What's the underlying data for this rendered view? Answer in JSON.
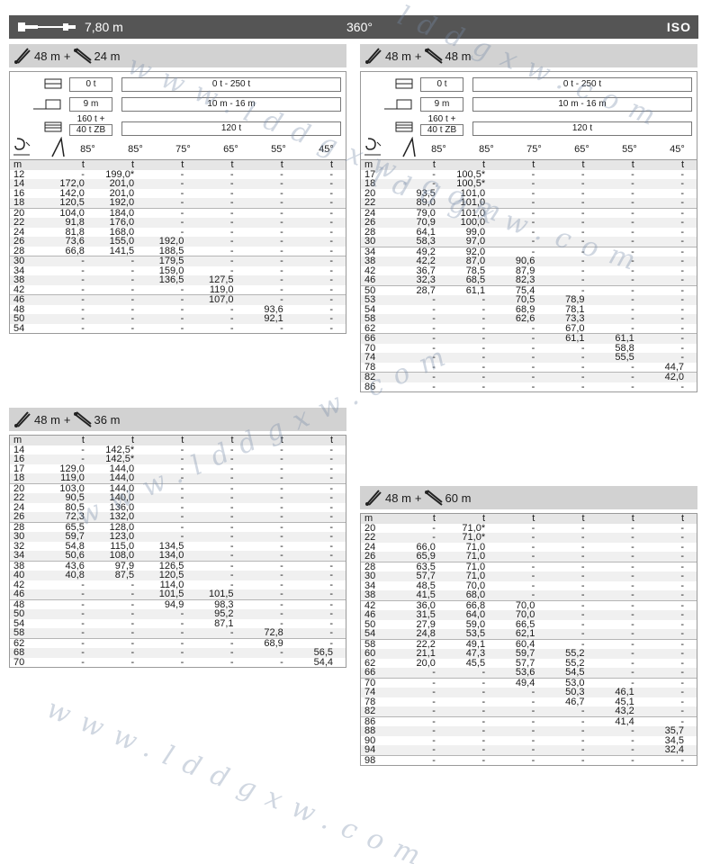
{
  "header": {
    "boom_length": "7,80 m",
    "rotation": "360°",
    "standard": "ISO"
  },
  "config_labels": {
    "ballast_1": "0 t",
    "ballast_range": "0 t - 250 t",
    "radius_1": "9 m",
    "radius_range": "10 m - 16 m",
    "superlift_line1": "160 t +",
    "superlift_line2": "40 t ZB",
    "superlift_range": "120 t"
  },
  "unit_label": "t",
  "radius_unit": "m",
  "tables": [
    {
      "main_boom": "48 m",
      "plus": "+",
      "jib": "24 m",
      "angles": [
        "85°",
        "85°",
        "75°",
        "65°",
        "55°",
        "45°"
      ],
      "rows": [
        [
          "12",
          "-",
          "199,0*",
          "-",
          "-",
          "-",
          "-"
        ],
        [
          "14",
          "172,0",
          "201,0",
          "-",
          "-",
          "-",
          "-"
        ],
        [
          "16",
          "142,0",
          "201,0",
          "-",
          "-",
          "-",
          "-"
        ],
        [
          "18",
          "120,5",
          "192,0",
          "-",
          "-",
          "-",
          "-"
        ],
        [
          "20",
          "104,0",
          "184,0",
          "-",
          "-",
          "-",
          "-"
        ],
        [
          "22",
          "91,8",
          "176,0",
          "-",
          "-",
          "-",
          "-"
        ],
        [
          "24",
          "81,8",
          "168,0",
          "-",
          "-",
          "-",
          "-"
        ],
        [
          "26",
          "73,6",
          "155,0",
          "192,0",
          "-",
          "-",
          "-"
        ],
        [
          "28",
          "66,8",
          "141,5",
          "188,5",
          "-",
          "-",
          "-"
        ],
        [
          "30",
          "-",
          "-",
          "179,5",
          "-",
          "-",
          "-"
        ],
        [
          "34",
          "-",
          "-",
          "159,0",
          "-",
          "-",
          "-"
        ],
        [
          "38",
          "-",
          "-",
          "136,5",
          "127,5",
          "-",
          "-"
        ],
        [
          "42",
          "-",
          "-",
          "-",
          "119,0",
          "-",
          "-"
        ],
        [
          "46",
          "-",
          "-",
          "-",
          "107,0",
          "-",
          "-"
        ],
        [
          "48",
          "-",
          "-",
          "-",
          "-",
          "93,6",
          "-"
        ],
        [
          "50",
          "-",
          "-",
          "-",
          "-",
          "92,1",
          "-"
        ],
        [
          "54",
          "-",
          "-",
          "-",
          "-",
          "-",
          "-"
        ]
      ]
    },
    {
      "main_boom": "48 m",
      "plus": "+",
      "jib": "36 m",
      "rows": [
        [
          "14",
          "-",
          "142,5*",
          "-",
          "-",
          "-",
          "-"
        ],
        [
          "16",
          "-",
          "142,5*",
          "-",
          "-",
          "-",
          "-"
        ],
        [
          "17",
          "129,0",
          "144,0",
          "-",
          "-",
          "-",
          "-"
        ],
        [
          "18",
          "119,0",
          "144,0",
          "-",
          "-",
          "-",
          "-"
        ],
        [
          "20",
          "103,0",
          "144,0",
          "-",
          "-",
          "-",
          "-"
        ],
        [
          "22",
          "90,5",
          "140,0",
          "-",
          "-",
          "-",
          "-"
        ],
        [
          "24",
          "80,5",
          "136,0",
          "-",
          "-",
          "-",
          "-"
        ],
        [
          "26",
          "72,3",
          "132,0",
          "-",
          "-",
          "-",
          "-"
        ],
        [
          "28",
          "65,5",
          "128,0",
          "-",
          "-",
          "-",
          "-"
        ],
        [
          "30",
          "59,7",
          "123,0",
          "-",
          "-",
          "-",
          "-"
        ],
        [
          "32",
          "54,8",
          "115,0",
          "134,5",
          "-",
          "-",
          "-"
        ],
        [
          "34",
          "50,6",
          "108,0",
          "134,0",
          "-",
          "-",
          "-"
        ],
        [
          "38",
          "43,6",
          "97,9",
          "126,5",
          "-",
          "-",
          "-"
        ],
        [
          "40",
          "40,8",
          "87,5",
          "120,5",
          "-",
          "-",
          "-"
        ],
        [
          "42",
          "-",
          "-",
          "114,0",
          "-",
          "-",
          "-"
        ],
        [
          "46",
          "-",
          "-",
          "101,5",
          "101,5",
          "-",
          "-"
        ],
        [
          "48",
          "-",
          "-",
          "94,9",
          "98,3",
          "-",
          "-"
        ],
        [
          "50",
          "-",
          "-",
          "-",
          "95,2",
          "-",
          "-"
        ],
        [
          "54",
          "-",
          "-",
          "-",
          "87,1",
          "-",
          "-"
        ],
        [
          "58",
          "-",
          "-",
          "-",
          "-",
          "72,8",
          "-"
        ],
        [
          "62",
          "-",
          "-",
          "-",
          "-",
          "68,9",
          "-"
        ],
        [
          "68",
          "-",
          "-",
          "-",
          "-",
          "-",
          "56,5"
        ],
        [
          "70",
          "-",
          "-",
          "-",
          "-",
          "-",
          "54,4"
        ]
      ]
    },
    {
      "main_boom": "48 m",
      "plus": "+",
      "jib": "48 m",
      "angles": [
        "85°",
        "85°",
        "75°",
        "65°",
        "55°",
        "45°"
      ],
      "rows": [
        [
          "17",
          "-",
          "100,5*",
          "-",
          "-",
          "-",
          "-"
        ],
        [
          "18",
          "-",
          "100,5*",
          "-",
          "-",
          "-",
          "-"
        ],
        [
          "20",
          "93,5",
          "101,0",
          "-",
          "-",
          "-",
          "-"
        ],
        [
          "22",
          "89,0",
          "101,0",
          "-",
          "-",
          "-",
          "-"
        ],
        [
          "24",
          "79,0",
          "101,0",
          "-",
          "-",
          "-",
          "-"
        ],
        [
          "26",
          "70,9",
          "100,0",
          "-",
          "-",
          "-",
          "-"
        ],
        [
          "28",
          "64,1",
          "99,0",
          "-",
          "-",
          "-",
          "-"
        ],
        [
          "30",
          "58,3",
          "97,0",
          "-",
          "-",
          "-",
          "-"
        ],
        [
          "34",
          "49,2",
          "92,0",
          "-",
          "-",
          "-",
          "-"
        ],
        [
          "38",
          "42,2",
          "87,0",
          "90,6",
          "-",
          "-",
          "-"
        ],
        [
          "42",
          "36,7",
          "78,5",
          "87,9",
          "-",
          "-",
          "-"
        ],
        [
          "46",
          "32,3",
          "68,5",
          "82,3",
          "-",
          "-",
          "-"
        ],
        [
          "50",
          "28,7",
          "61,1",
          "75,4",
          "-",
          "-",
          "-"
        ],
        [
          "53",
          "-",
          "-",
          "70,5",
          "78,9",
          "-",
          "-"
        ],
        [
          "54",
          "-",
          "-",
          "68,9",
          "78,1",
          "-",
          "-"
        ],
        [
          "58",
          "-",
          "-",
          "62,6",
          "73,3",
          "-",
          "-"
        ],
        [
          "62",
          "-",
          "-",
          "-",
          "67,0",
          "-",
          "-"
        ],
        [
          "66",
          "-",
          "-",
          "-",
          "61,1",
          "61,1",
          "-"
        ],
        [
          "70",
          "-",
          "-",
          "-",
          "-",
          "58,8",
          "-"
        ],
        [
          "74",
          "-",
          "-",
          "-",
          "-",
          "55,5",
          "-"
        ],
        [
          "78",
          "-",
          "-",
          "-",
          "-",
          "-",
          "44,7"
        ],
        [
          "82",
          "-",
          "-",
          "-",
          "-",
          "-",
          "42,0"
        ],
        [
          "86",
          "-",
          "-",
          "-",
          "-",
          "-",
          "-"
        ]
      ]
    },
    {
      "main_boom": "48 m",
      "plus": "+",
      "jib": "60 m",
      "rows": [
        [
          "20",
          "-",
          "71,0*",
          "-",
          "-",
          "-",
          "-"
        ],
        [
          "22",
          "-",
          "71,0*",
          "-",
          "-",
          "-",
          "-"
        ],
        [
          "24",
          "66,0",
          "71,0",
          "-",
          "-",
          "-",
          "-"
        ],
        [
          "26",
          "65,9",
          "71,0",
          "-",
          "-",
          "-",
          "-"
        ],
        [
          "28",
          "63,5",
          "71,0",
          "-",
          "-",
          "-",
          "-"
        ],
        [
          "30",
          "57,7",
          "71,0",
          "-",
          "-",
          "-",
          "-"
        ],
        [
          "34",
          "48,5",
          "70,0",
          "-",
          "-",
          "-",
          "-"
        ],
        [
          "38",
          "41,5",
          "68,0",
          "-",
          "-",
          "-",
          "-"
        ],
        [
          "42",
          "36,0",
          "66,8",
          "70,0",
          "-",
          "-",
          "-"
        ],
        [
          "46",
          "31,5",
          "64,0",
          "70,0",
          "-",
          "-",
          "-"
        ],
        [
          "50",
          "27,9",
          "59,0",
          "66,5",
          "-",
          "-",
          "-"
        ],
        [
          "54",
          "24,8",
          "53,5",
          "62,1",
          "-",
          "-",
          "-"
        ],
        [
          "58",
          "22,2",
          "49,1",
          "60,4",
          "-",
          "-",
          "-"
        ],
        [
          "60",
          "21,1",
          "47,3",
          "59,7",
          "55,2",
          "-",
          "-"
        ],
        [
          "62",
          "20,0",
          "45,5",
          "57,7",
          "55,2",
          "-",
          "-"
        ],
        [
          "66",
          "-",
          "-",
          "53,6",
          "54,5",
          "-",
          "-"
        ],
        [
          "70",
          "-",
          "-",
          "49,4",
          "53,0",
          "-",
          "-"
        ],
        [
          "74",
          "-",
          "-",
          "-",
          "50,3",
          "46,1",
          "-"
        ],
        [
          "78",
          "-",
          "-",
          "-",
          "46,7",
          "45,1",
          "-"
        ],
        [
          "82",
          "-",
          "-",
          "-",
          "-",
          "43,2",
          "-"
        ],
        [
          "86",
          "-",
          "-",
          "-",
          "-",
          "41,4",
          "-"
        ],
        [
          "88",
          "-",
          "-",
          "-",
          "-",
          "-",
          "35,7"
        ],
        [
          "90",
          "-",
          "-",
          "-",
          "-",
          "-",
          "34,5"
        ],
        [
          "94",
          "-",
          "-",
          "-",
          "-",
          "-",
          "32,4"
        ],
        [
          "98",
          "-",
          "-",
          "-",
          "-",
          "-",
          "-"
        ]
      ]
    }
  ]
}
